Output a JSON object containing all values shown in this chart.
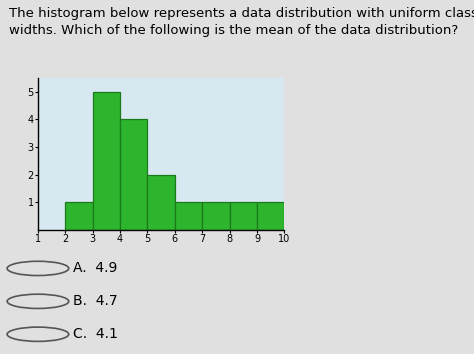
{
  "question_text": "The histogram below represents a data distribution with uniform class\nwidths. Which of the following is the mean of the data distribution?",
  "bar_left_edges": [
    2,
    3,
    4,
    5,
    6,
    7,
    8,
    9
  ],
  "bar_heights": [
    1,
    5,
    4,
    2,
    1,
    1,
    1,
    1
  ],
  "bar_color": "#2db52d",
  "bar_edgecolor": "#1a7a1a",
  "xlim": [
    1,
    10
  ],
  "ylim": [
    0,
    5.5
  ],
  "xticks": [
    1,
    2,
    3,
    4,
    5,
    6,
    7,
    8,
    9,
    10
  ],
  "yticks": [
    1,
    2,
    3,
    4,
    5
  ],
  "plot_bg_color": "#d8e8f0",
  "fig_bg_color": "#e0e0e0",
  "choices_bg_color": "#e0e0e0",
  "separator_color": "#bbbbbb",
  "choices": [
    "A.  4.9",
    "B.  4.7",
    "C.  4.1"
  ],
  "question_fontsize": 9.5,
  "choice_fontsize": 10,
  "tick_fontsize": 7
}
